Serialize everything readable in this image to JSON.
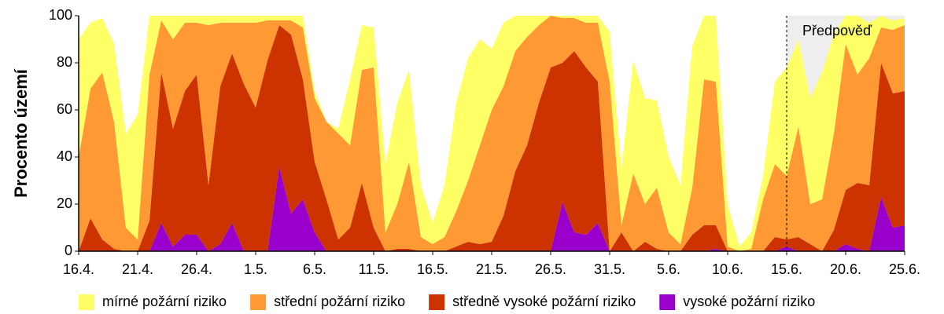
{
  "chart_data": {
    "type": "stacked-area",
    "y_label": "Procento území",
    "categories": [
      "16.4.",
      null,
      null,
      null,
      null,
      "21.4.",
      null,
      null,
      null,
      null,
      "26.4.",
      null,
      null,
      null,
      null,
      "1.5.",
      null,
      null,
      null,
      null,
      "6.5.",
      null,
      null,
      null,
      null,
      "11.5.",
      null,
      null,
      null,
      null,
      "16.5.",
      null,
      null,
      null,
      null,
      "21.5.",
      null,
      null,
      null,
      null,
      "26.5.",
      null,
      null,
      null,
      null,
      "31.5.",
      null,
      null,
      null,
      null,
      "5.6.",
      null,
      null,
      null,
      null,
      "10.6.",
      null,
      null,
      null,
      null,
      "15.6.",
      null,
      null,
      null,
      null,
      "20.6.",
      null,
      null,
      null,
      null,
      "25.6."
    ],
    "series": [
      {
        "name": "mírné požární riziko",
        "color": "#ffff66",
        "values": [
          50,
          28,
          23,
          33,
          40,
          53,
          25,
          2,
          10,
          3,
          3,
          4,
          3,
          3,
          3,
          3,
          2,
          2,
          2,
          5,
          3,
          0,
          2,
          28,
          19,
          17,
          29,
          43,
          39,
          22,
          9,
          22,
          46,
          52,
          45,
          26,
          27,
          15,
          9,
          4,
          0,
          1,
          1,
          3,
          3,
          21,
          24,
          48,
          45,
          37,
          32,
          25,
          60,
          27,
          28,
          18,
          2,
          7,
          10,
          35,
          46,
          37,
          45,
          54,
          42,
          12,
          25,
          15,
          5,
          4,
          3
        ]
      },
      {
        "name": "střední požární riziko",
        "color": "#ff9933",
        "values": [
          40,
          55,
          71,
          54,
          10,
          5,
          62,
          22,
          38,
          29,
          22,
          68,
          27,
          13,
          26,
          36,
          17,
          2,
          6,
          22,
          27,
          33,
          45,
          35,
          48,
          68,
          8,
          19,
          37,
          6,
          3,
          6,
          15,
          26,
          42,
          56,
          55,
          51,
          46,
          33,
          22,
          19,
          14,
          19,
          25,
          72,
          3,
          33,
          16,
          26,
          8,
          3,
          20,
          62,
          61,
          2,
          0,
          1,
          22,
          31,
          27,
          47,
          17,
          22,
          41,
          62,
          46,
          54,
          15,
          27,
          28
        ]
      },
      {
        "name": "středně vysoké požární riziko",
        "color": "#cc3300",
        "values": [
          0,
          14,
          5,
          1,
          0,
          0,
          13,
          64,
          50,
          61,
          68,
          28,
          67,
          72,
          71,
          61,
          81,
          60,
          76,
          51,
          30,
          22,
          5,
          10,
          29,
          10,
          0,
          1,
          1,
          0,
          0,
          0,
          2,
          4,
          3,
          4,
          15,
          34,
          45,
          63,
          78,
          59,
          77,
          71,
          60,
          0,
          8,
          0,
          4,
          1,
          0,
          0,
          7,
          11,
          10,
          0,
          0,
          0,
          0,
          6,
          3,
          6,
          3,
          0,
          9,
          23,
          28,
          28,
          57,
          57,
          57
        ]
      },
      {
        "name": "vysoké požární riziko",
        "color": "#9900cc",
        "values": [
          0,
          0,
          0,
          0,
          0,
          0,
          0,
          12,
          2,
          7,
          7,
          0,
          3,
          12,
          0,
          0,
          0,
          36,
          16,
          22,
          8,
          0,
          0,
          0,
          0,
          0,
          0,
          0,
          0,
          0,
          0,
          0,
          0,
          0,
          0,
          0,
          0,
          0,
          0,
          0,
          0,
          21,
          8,
          7,
          12,
          0,
          0,
          0,
          0,
          0,
          0,
          0,
          0,
          0,
          1,
          0,
          0,
          0,
          0,
          0,
          2,
          0,
          0,
          0,
          0,
          3,
          1,
          0,
          23,
          10,
          11
        ]
      }
    ],
    "ylim": [
      0,
      100
    ],
    "yticks": [
      0,
      20,
      40,
      60,
      80,
      100
    ],
    "grid": false,
    "legend": "bottom",
    "forecast": {
      "label": "Předpověď",
      "from": "15.6.",
      "color": "#eeeeee"
    }
  }
}
